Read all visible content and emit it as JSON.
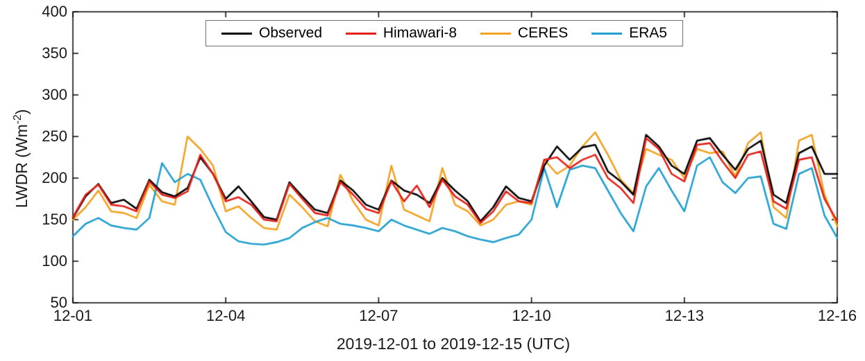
{
  "figure": {
    "xlabel": "2019-12-01 to 2019-12-15 (UTC)",
    "ylabel_prefix": "LWDR (Wm",
    "ylabel_exp": "-2",
    "ylabel_suffix": ")"
  },
  "chart_data": {
    "type": "line",
    "title": "",
    "xlabel": "2019-12-01 to 2019-12-15 (UTC)",
    "ylabel": "LWDR (Wm-2)",
    "x_unit": "days since 2019-12-01 00:00 UTC, 6-hourly samples",
    "xlim_days": [
      0,
      15
    ],
    "ylim": [
      50,
      400
    ],
    "y_ticks": [
      50,
      100,
      150,
      200,
      250,
      300,
      350,
      400
    ],
    "x_ticks": [
      {
        "d": 0,
        "label": "12-01"
      },
      {
        "d": 3,
        "label": "12-04"
      },
      {
        "d": 6,
        "label": "12-07"
      },
      {
        "d": 9,
        "label": "12-10"
      },
      {
        "d": 12,
        "label": "12-13"
      },
      {
        "d": 15,
        "label": "12-16"
      }
    ],
    "grid": false,
    "legend_position": "top-center",
    "frame_color": "#000000",
    "x_days": [
      0,
      0.25,
      0.5,
      0.75,
      1,
      1.25,
      1.5,
      1.75,
      2,
      2.25,
      2.5,
      2.75,
      3,
      3.25,
      3.5,
      3.75,
      4,
      4.25,
      4.5,
      4.75,
      5,
      5.25,
      5.5,
      5.75,
      6,
      6.25,
      6.5,
      6.75,
      7,
      7.25,
      7.5,
      7.75,
      8,
      8.25,
      8.5,
      8.75,
      9,
      9.25,
      9.5,
      9.75,
      10,
      10.25,
      10.5,
      10.75,
      11,
      11.25,
      11.5,
      11.75,
      12,
      12.25,
      12.5,
      12.75,
      13,
      13.25,
      13.5,
      13.75,
      14,
      14.25,
      14.5,
      14.75,
      15
    ],
    "series": [
      {
        "name": "Observed",
        "color": "#000000",
        "values": [
          152,
          178,
          193,
          170,
          174,
          163,
          198,
          183,
          178,
          188,
          225,
          205,
          175,
          190,
          172,
          153,
          150,
          195,
          178,
          162,
          158,
          197,
          185,
          168,
          162,
          197,
          185,
          180,
          170,
          200,
          185,
          172,
          148,
          165,
          190,
          176,
          172,
          215,
          238,
          222,
          237,
          240,
          208,
          196,
          180,
          252,
          238,
          215,
          205,
          245,
          248,
          228,
          210,
          235,
          245,
          180,
          170,
          230,
          238,
          205,
          205
        ]
      },
      {
        "name": "Himawari-8",
        "color": "#e32119",
        "values": [
          153,
          180,
          192,
          168,
          166,
          160,
          196,
          180,
          176,
          184,
          228,
          205,
          172,
          177,
          168,
          150,
          148,
          193,
          175,
          158,
          155,
          195,
          180,
          163,
          158,
          196,
          172,
          191,
          165,
          198,
          178,
          168,
          146,
          160,
          184,
          172,
          170,
          222,
          225,
          212,
          222,
          228,
          200,
          188,
          170,
          248,
          235,
          205,
          196,
          240,
          242,
          220,
          200,
          228,
          232,
          172,
          163,
          222,
          225,
          175,
          148
        ]
      },
      {
        "name": "CERES",
        "color": "#f0a322",
        "values": [
          150,
          165,
          185,
          160,
          158,
          152,
          192,
          172,
          168,
          250,
          235,
          215,
          160,
          166,
          152,
          140,
          138,
          180,
          165,
          148,
          142,
          204,
          172,
          150,
          143,
          215,
          162,
          155,
          148,
          212,
          168,
          160,
          143,
          150,
          168,
          172,
          168,
          222,
          205,
          215,
          238,
          255,
          228,
          198,
          182,
          235,
          228,
          222,
          200,
          235,
          230,
          232,
          202,
          242,
          255,
          165,
          152,
          245,
          252,
          180,
          142
        ]
      },
      {
        "name": "ERA5",
        "color": "#219fce",
        "values": [
          130,
          145,
          152,
          143,
          140,
          138,
          152,
          218,
          195,
          205,
          198,
          165,
          135,
          124,
          121,
          120,
          123,
          128,
          140,
          147,
          152,
          145,
          143,
          140,
          136,
          150,
          143,
          138,
          133,
          140,
          136,
          130,
          126,
          123,
          128,
          132,
          150,
          212,
          165,
          210,
          215,
          212,
          185,
          158,
          136,
          190,
          212,
          185,
          160,
          215,
          225,
          195,
          182,
          200,
          202,
          145,
          139,
          205,
          212,
          155,
          128
        ]
      }
    ]
  }
}
